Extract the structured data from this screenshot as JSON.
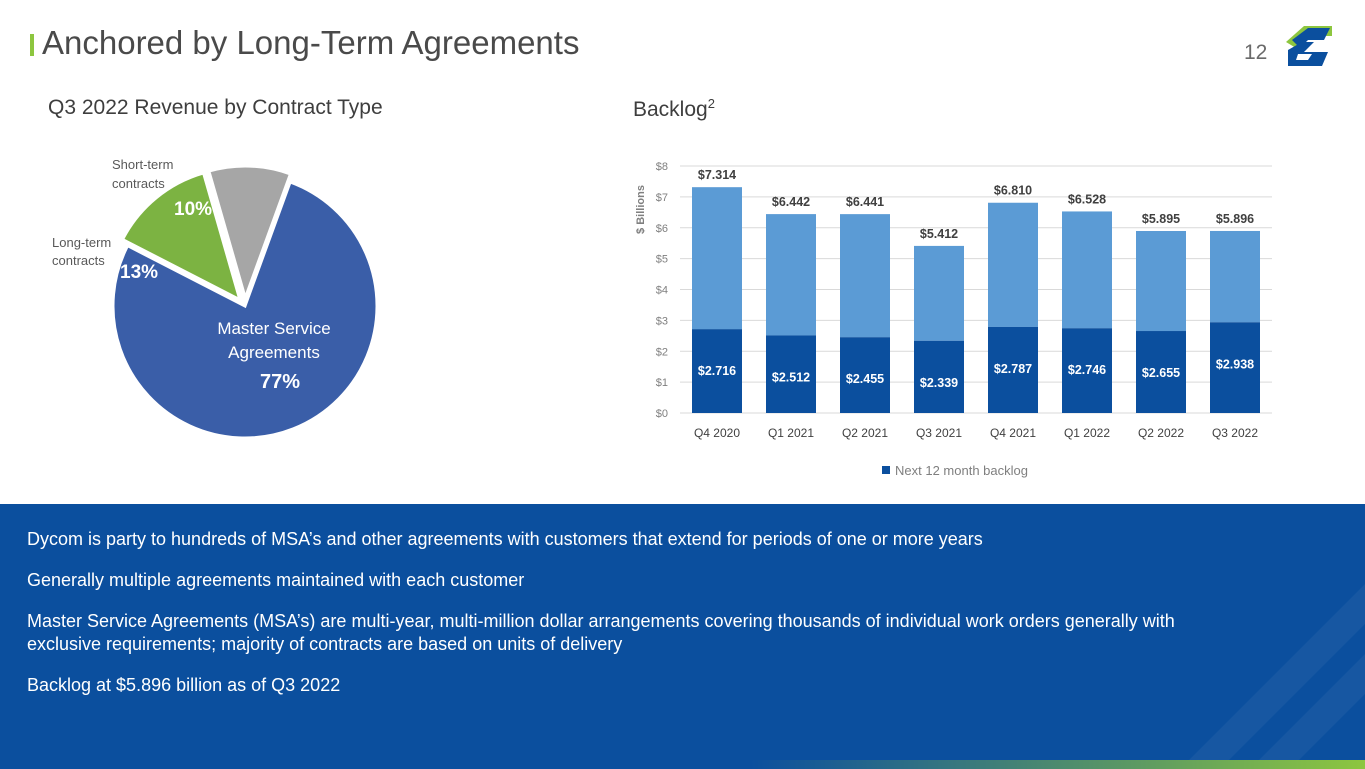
{
  "header": {
    "title": "Anchored by Long-Term Agreements",
    "page_number": "12"
  },
  "colors": {
    "accent_green": "#8dc63f",
    "pie_blue": "#3a5ea8",
    "pie_green": "#7cb342",
    "pie_gray": "#a6a6a6",
    "bar_dark": "#0b4f9e",
    "bar_light": "#5b9bd5",
    "footer_bg": "#0b4f9e"
  },
  "pie_subtitle": "Q3 2022 Revenue by Contract Type",
  "bar_subtitle": {
    "text": "Backlog",
    "sup": "2"
  },
  "chart_data": [
    {
      "type": "pie",
      "title": "Q3 2022 Revenue by Contract Type",
      "slices": [
        {
          "label_lines": [
            "Master Service",
            "Agreements"
          ],
          "value": 77,
          "pct_label": "77%"
        },
        {
          "label_lines": [
            "Long-term",
            "contracts"
          ],
          "value": 13,
          "pct_label": "13%"
        },
        {
          "label_lines": [
            "Short-term",
            "contracts"
          ],
          "value": 10,
          "pct_label": "10%"
        }
      ]
    },
    {
      "type": "bar",
      "title": "Backlog",
      "ylabel": "$ Billions",
      "ylim": [
        0,
        8
      ],
      "ytick_labels": [
        "$0",
        "$1",
        "$2",
        "$3",
        "$4",
        "$5",
        "$6",
        "$7",
        "$8"
      ],
      "categories": [
        "Q4 2020",
        "Q1 2021",
        "Q2 2021",
        "Q3 2021",
        "Q4 2021",
        "Q1 2022",
        "Q2 2022",
        "Q3 2022"
      ],
      "totals": [
        7.314,
        6.442,
        6.441,
        5.412,
        6.81,
        6.528,
        5.895,
        5.896
      ],
      "total_labels": [
        "$7.314",
        "$6.442",
        "$6.441",
        "$5.412",
        "$6.810",
        "$6.528",
        "$5.895",
        "$5.896"
      ],
      "series": [
        {
          "name": "Next 12 month backlog",
          "values": [
            2.716,
            2.512,
            2.455,
            2.339,
            2.787,
            2.746,
            2.655,
            2.938
          ],
          "labels": [
            "$2.716",
            "$2.512",
            "$2.455",
            "$2.339",
            "$2.787",
            "$2.746",
            "$2.655",
            "$2.938"
          ]
        }
      ],
      "legend": [
        "Next 12 month backlog"
      ],
      "grid": true
    }
  ],
  "bullets": [
    "Dycom is party to hundreds of MSA’s and other agreements with customers that extend for periods of one or more years",
    "Generally multiple agreements maintained with each customer",
    "Master Service Agreements (MSA’s) are multi-year, multi-million dollar arrangements covering thousands of individual work orders generally with exclusive requirements; majority of contracts are based on units of delivery",
    "Backlog at $5.896 billion as of Q3 2022"
  ]
}
